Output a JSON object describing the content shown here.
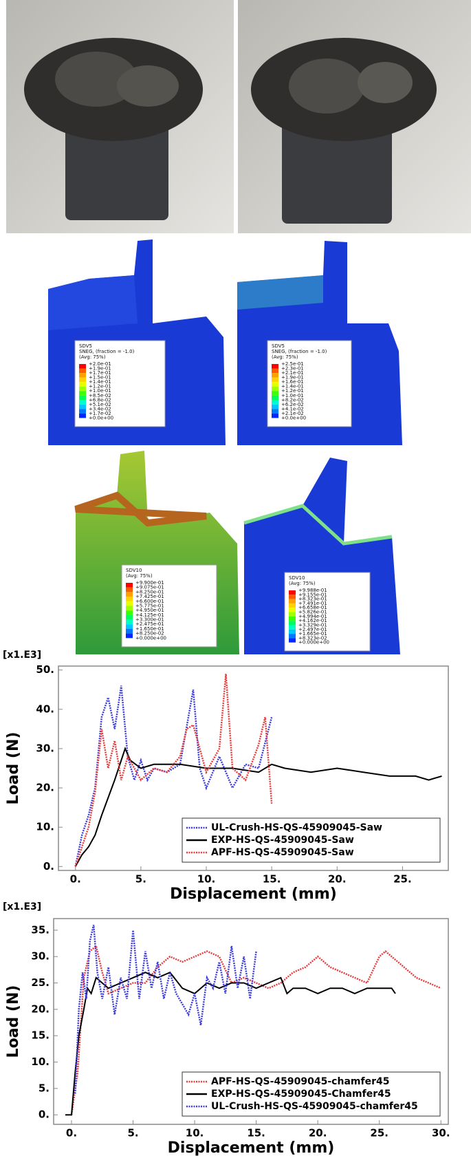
{
  "fe_panels": [
    {
      "variable": "SDV5",
      "lines": [
        "SNEG, (fraction = -1.0)",
        "(Avg: 75%)"
      ],
      "values": [
        "+2.0e-01",
        "+1.9e-01",
        "+1.7e-01",
        "+1.5e-01",
        "+1.4e-01",
        "+1.2e-01",
        "+1.0e-01",
        "+8.5e-02",
        "+6.8e-02",
        "+5.1e-02",
        "+3.4e-02",
        "+1.7e-02",
        "+0.0e+00"
      ]
    },
    {
      "variable": "SDV5",
      "lines": [
        "SNEG, (fraction = -1.0)",
        "(Avg: 75%)"
      ],
      "values": [
        "+2.5e-01",
        "+2.3e-01",
        "+2.1e-01",
        "+1.9e-01",
        "+1.6e-01",
        "+1.4e-01",
        "+1.2e-01",
        "+1.0e-01",
        "+8.2e-02",
        "+6.2e-02",
        "+4.1e-02",
        "+2.1e-02",
        "+0.0e+00"
      ]
    },
    {
      "variable": "SDV10",
      "lines": [
        "(Avg: 75%)"
      ],
      "values": [
        "+9.900e-01",
        "+9.075e-01",
        "+8.250e-01",
        "+7.425e-01",
        "+6.600e-01",
        "+5.775e-01",
        "+4.950e-01",
        "+4.125e-01",
        "+3.300e-01",
        "+2.475e-01",
        "+1.650e-01",
        "+8.250e-02",
        "+0.000e+00"
      ]
    },
    {
      "variable": "SDV10",
      "lines": [
        "(Avg: 75%)"
      ],
      "values": [
        "+9.988e-01",
        "+9.155e-01",
        "+8.323e-01",
        "+7.491e-01",
        "+6.658e-01",
        "+5.826e-01",
        "+4.994e-01",
        "+4.162e-01",
        "+3.329e-01",
        "+2.497e-01",
        "+1.665e-01",
        "+8.323e-02",
        "+0.000e+00"
      ]
    }
  ],
  "chart_data": [
    {
      "type": "line",
      "annotation": "[x1.E3]",
      "xlabel": "Displacement (mm)",
      "ylabel": "Load (N)",
      "xlim": [
        -1.3,
        28.5
      ],
      "ylim": [
        -1,
        51
      ],
      "xticks": [
        {
          "value": 0,
          "label": "0."
        },
        {
          "value": 5,
          "label": "5."
        },
        {
          "value": 10,
          "label": "10."
        },
        {
          "value": 15,
          "label": "15."
        },
        {
          "value": 20,
          "label": "20."
        },
        {
          "value": 25,
          "label": "25."
        }
      ],
      "yticks": [
        {
          "value": 0,
          "label": "0."
        },
        {
          "value": 10,
          "label": "10."
        },
        {
          "value": 20,
          "label": "20."
        },
        {
          "value": 30,
          "label": "30."
        },
        {
          "value": 40,
          "label": "40."
        },
        {
          "value": 50,
          "label": "50."
        }
      ],
      "legend": "lower right",
      "series": [
        {
          "name": "UL-Crush-HS-QS-45909045-Saw",
          "color": "#3a3ae0",
          "style": "dotted",
          "x": [
            0,
            0.5,
            1,
            1.5,
            2,
            2.5,
            3,
            3.5,
            4,
            4.5,
            5,
            5.5,
            6,
            7,
            8,
            9,
            9.5,
            10,
            11,
            12,
            13,
            14,
            15
          ],
          "values": [
            0,
            8,
            13,
            20,
            38,
            43,
            35,
            46,
            28,
            22,
            27,
            22,
            25,
            24,
            26,
            45,
            25,
            20,
            28,
            20,
            26,
            25,
            38
          ]
        },
        {
          "name": "EXP-HS-QS-45909045-Saw",
          "color": "#000000",
          "style": "solid",
          "x": [
            0,
            0.5,
            1,
            1.5,
            2,
            3,
            3.8,
            4.2,
            5,
            6,
            8,
            10,
            12,
            14,
            15,
            16,
            18,
            20,
            22,
            24,
            26,
            27,
            28
          ],
          "values": [
            0,
            3,
            5,
            8,
            13,
            22,
            30,
            27,
            25,
            26,
            26,
            25,
            25,
            24,
            26,
            25,
            24,
            25,
            24,
            23,
            23,
            22,
            23
          ]
        },
        {
          "name": "APF-HS-QS-45909045-Saw",
          "color": "#e83a3a",
          "style": "dotted",
          "x": [
            0,
            0.5,
            1,
            1.5,
            2,
            2.5,
            3,
            3.5,
            4,
            5,
            6,
            7,
            8,
            8.5,
            9,
            9.5,
            10,
            11,
            11.5,
            12,
            13,
            14,
            14.5,
            15
          ],
          "values": [
            0,
            5,
            10,
            19,
            35,
            25,
            32,
            22,
            28,
            22,
            25,
            24,
            28,
            35,
            36,
            30,
            24,
            30,
            49,
            25,
            22,
            31,
            38,
            16
          ]
        }
      ]
    },
    {
      "type": "line",
      "annotation": "[x1.E3]",
      "xlabel": "Displacement (mm)",
      "ylabel": "Load (N)",
      "xlim": [
        -1.45,
        30.6
      ],
      "ylim": [
        -1.8,
        37.2
      ],
      "xticks": [
        {
          "value": 0,
          "label": "0."
        },
        {
          "value": 5,
          "label": "5."
        },
        {
          "value": 10,
          "label": "10."
        },
        {
          "value": 15,
          "label": "15."
        },
        {
          "value": 20,
          "label": "20."
        },
        {
          "value": 25,
          "label": "25."
        },
        {
          "value": 30,
          "label": "30."
        }
      ],
      "yticks": [
        {
          "value": 0,
          "label": "0."
        },
        {
          "value": 5,
          "label": "5."
        },
        {
          "value": 10,
          "label": "10."
        },
        {
          "value": 15,
          "label": "15."
        },
        {
          "value": 20,
          "label": "20."
        },
        {
          "value": 25,
          "label": "25."
        },
        {
          "value": 30,
          "label": "30."
        },
        {
          "value": 35,
          "label": "35."
        }
      ],
      "legend": "lower right",
      "series": [
        {
          "name": "APF-HS-QS-45909045-chamfer45",
          "color": "#e83a3a",
          "style": "dotted",
          "x": [
            0,
            0.5,
            1,
            1.5,
            2,
            2.5,
            3,
            4,
            5,
            6,
            7,
            8,
            9,
            10,
            11,
            12,
            13,
            14,
            15,
            16,
            17,
            18,
            19,
            20,
            21,
            22,
            23,
            24,
            25,
            25.5,
            26,
            27,
            28,
            29,
            30
          ],
          "values": [
            0,
            8,
            26,
            31,
            32,
            27,
            23,
            24,
            25,
            25,
            28,
            30,
            29,
            30,
            31,
            30,
            25,
            26,
            25,
            24,
            25,
            27,
            28,
            30,
            28,
            27,
            26,
            25,
            30,
            31,
            30,
            28,
            26,
            25,
            24
          ]
        },
        {
          "name": "EXP-HS-QS-45909045-Chamfer45",
          "color": "#000000",
          "style": "solid",
          "x": [
            -0.5,
            0,
            0.3,
            0.6,
            1,
            1.3,
            1.6,
            2,
            3,
            4,
            5,
            6,
            7,
            8,
            9,
            10,
            11,
            12,
            13,
            14,
            15,
            16,
            17,
            17.5,
            18,
            19,
            20,
            21,
            22,
            23,
            24,
            25,
            26,
            26.3
          ],
          "values": [
            0,
            0,
            8,
            15,
            20,
            24,
            23,
            26,
            24,
            25,
            26,
            27,
            26,
            27,
            24,
            23,
            25,
            24,
            25,
            25,
            24,
            25,
            26,
            23,
            24,
            24,
            23,
            24,
            24,
            23,
            24,
            24,
            24,
            23
          ]
        },
        {
          "name": "UL-Crush-HS-QS-45909045-chamfer45",
          "color": "#3a3ae0",
          "style": "dotted",
          "x": [
            0.3,
            0.6,
            0.9,
            1.2,
            1.5,
            1.8,
            2.1,
            2.5,
            3,
            3.5,
            4,
            4.5,
            5,
            5.5,
            6,
            6.5,
            7,
            7.5,
            8,
            8.5,
            9,
            9.5,
            10,
            10.5,
            11,
            11.5,
            12,
            12.5,
            13,
            13.5,
            14,
            14.5,
            15
          ],
          "values": [
            4,
            20,
            27,
            22,
            33,
            36,
            27,
            22,
            28,
            19,
            26,
            22,
            35,
            22,
            31,
            24,
            29,
            22,
            27,
            23,
            21,
            19,
            23,
            17,
            26,
            24,
            29,
            23,
            32,
            24,
            30,
            22,
            31
          ]
        }
      ]
    }
  ]
}
